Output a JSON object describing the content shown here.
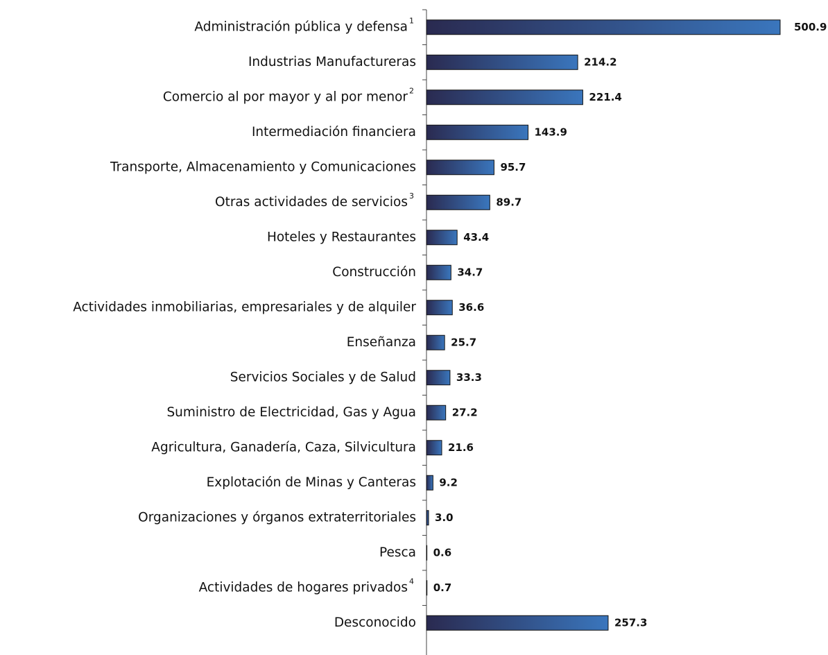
{
  "chart_data": {
    "type": "bar",
    "orientation": "horizontal",
    "categories": [
      "Administración pública y defensa",
      "Industrias Manufactureras",
      "Comercio al por mayor y al por menor",
      "Intermediación financiera",
      "Transporte, Almacenamiento y Comunicaciones",
      "Otras actividades de servicios",
      "Hoteles y Restaurantes",
      "Construcción",
      "Actividades inmobiliarias, empresariales y de alquiler",
      "Enseñanza",
      "Servicios Sociales y de Salud",
      "Suministro de Electricidad, Gas y Agua",
      "Agricultura, Ganadería, Caza, Silvicultura",
      "Explotación de Minas y Canteras",
      "Organizaciones y órganos extraterritoriales",
      "Pesca",
      "Actividades de hogares privados",
      "Desconocido"
    ],
    "superscripts": [
      "1",
      null,
      "2",
      null,
      null,
      "3",
      null,
      null,
      null,
      null,
      null,
      null,
      null,
      null,
      null,
      null,
      "4",
      null
    ],
    "values": [
      500.9,
      214.2,
      221.4,
      143.9,
      95.7,
      89.7,
      43.4,
      34.7,
      36.6,
      25.7,
      33.3,
      27.2,
      21.6,
      9.2,
      3,
      0.6,
      0.7,
      257.3
    ],
    "value_labels": [
      "500.9",
      "214.2",
      "221.4",
      "143.9",
      "95.7",
      "89.7",
      "43.4",
      "34.7",
      "36.6",
      "25.7",
      "33.3",
      "27.2",
      "21.6",
      "9.2",
      "3.0",
      "0.6",
      "0.7",
      "257.3"
    ],
    "color_start": "#2a2a50",
    "color_end": "#3a76bd"
  }
}
